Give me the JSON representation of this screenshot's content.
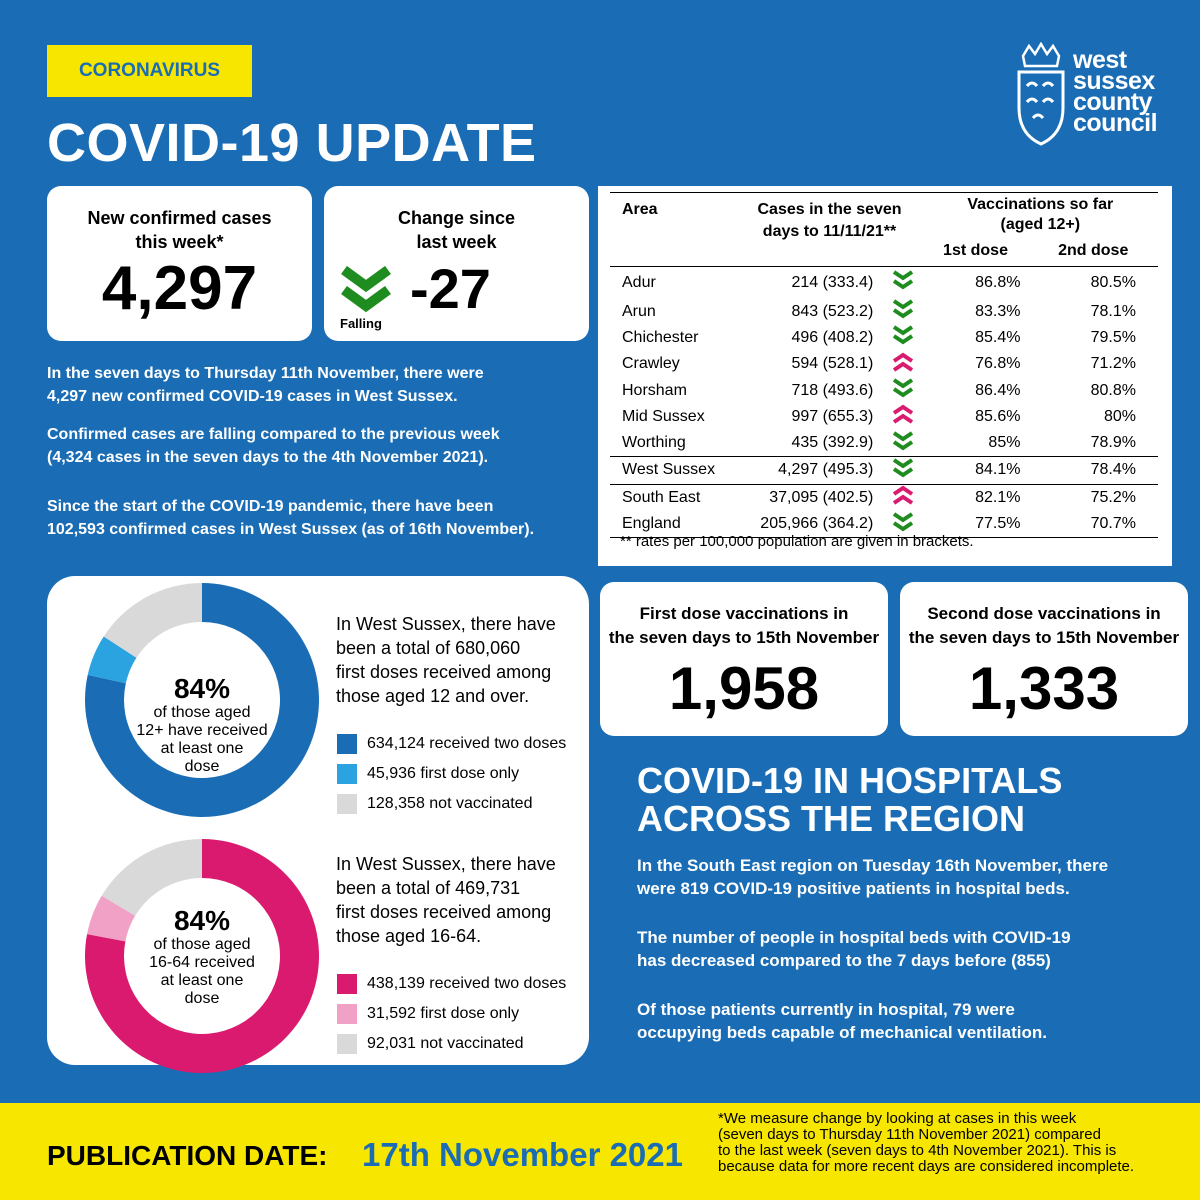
{
  "tag": "CORONAVIRUS",
  "title": "COVID-19 UPDATE",
  "logo": {
    "line1": "west",
    "line2": "sussex",
    "line3": "county",
    "line4": "council"
  },
  "cards": {
    "new_cases_label_1": "New confirmed cases",
    "new_cases_label_2": "this week*",
    "new_cases_value": "4,297",
    "change_label_1": "Change since",
    "change_label_2": "last week",
    "change_value": "-27",
    "change_status": "Falling"
  },
  "summary": {
    "p1_l1": "In the seven days to Thursday 11th November,  there were",
    "p1_l2": "4,297 new confirmed COVID-19 cases in West Sussex.",
    "p2_l1": "Confirmed cases are falling compared to the previous week",
    "p2_l2": "(4,324 cases in the seven days to the 4th November 2021).",
    "p3_l1": "Since the start of the COVID-19 pandemic, there have been",
    "p3_l2": "102,593 confirmed cases in West Sussex (as of 16th November)."
  },
  "table": {
    "h_area": "Area",
    "h_cases_1": "Cases in the seven",
    "h_cases_2": "days to 11/11/21**",
    "h_vacc_1": "Vaccinations so far",
    "h_vacc_2": "(aged 12+)",
    "h_d1": "1st dose",
    "h_d2": "2nd dose",
    "rows": [
      {
        "area": "Adur",
        "cases": "214 (333.4)",
        "trend": "down",
        "d1": "86.8%",
        "d2": "80.5%"
      },
      {
        "area": "Arun",
        "cases": "843 (523.2)",
        "trend": "down",
        "d1": "83.3%",
        "d2": "78.1%"
      },
      {
        "area": "Chichester",
        "cases": "496 (408.2)",
        "trend": "down",
        "d1": "85.4%",
        "d2": "79.5%"
      },
      {
        "area": "Crawley",
        "cases": "594 (528.1)",
        "trend": "up",
        "d1": "76.8%",
        "d2": "71.2%"
      },
      {
        "area": "Horsham",
        "cases": "718 (493.6)",
        "trend": "down",
        "d1": "86.4%",
        "d2": "80.8%"
      },
      {
        "area": "Mid Sussex",
        "cases": "997 (655.3)",
        "trend": "up",
        "d1": "85.6%",
        "d2": "80%"
      },
      {
        "area": "Worthing",
        "cases": "435 (392.9)",
        "trend": "down",
        "d1": "85%",
        "d2": "78.9%"
      },
      {
        "area": "West Sussex",
        "cases": "4,297 (495.3)",
        "trend": "down",
        "d1": "84.1%",
        "d2": "78.4%"
      },
      {
        "area": "South East",
        "cases": "37,095 (402.5)",
        "trend": "up",
        "d1": "82.1%",
        "d2": "75.2%"
      },
      {
        "area": "England",
        "cases": "205,966 (364.2)",
        "trend": "down",
        "d1": "77.5%",
        "d2": "70.7%"
      }
    ],
    "note": "** rates per 100,000 population are given in brackets."
  },
  "donut1": {
    "pct": "84%",
    "sub1": "of those aged",
    "sub2": "12+ have received",
    "sub3": "at least one",
    "sub4": "dose",
    "t1": "In West Sussex, there have",
    "t2": "been a total of 680,060",
    "t3": "first doses received among",
    "t4": "those aged 12 and over.",
    "legend": [
      {
        "label": "634,124 received two doses",
        "value": 634124,
        "color": "#1a6db5"
      },
      {
        "label": "45,936 first dose only",
        "value": 45936,
        "color": "#2aa3e0"
      },
      {
        "label": "128,358 not vaccinated",
        "value": 128358,
        "color": "#d9d9d9"
      }
    ]
  },
  "donut2": {
    "pct": "84%",
    "sub1": "of those aged",
    "sub2": "16-64 received",
    "sub3": "at least one",
    "sub4": "dose",
    "t1": "In West Sussex, there have",
    "t2": "been a total of 469,731",
    "t3": "first doses received among",
    "t4": "those aged 16-64.",
    "legend": [
      {
        "label": "438,139 received two doses",
        "value": 438139,
        "color": "#d91a6e"
      },
      {
        "label": "31,592 first dose only",
        "value": 31592,
        "color": "#f2a1c6"
      },
      {
        "label": "92,031 not vaccinated",
        "value": 92031,
        "color": "#d9d9d9"
      }
    ]
  },
  "vacc_cards": {
    "first_label_1": "First dose vaccinations in",
    "first_label_2": "the seven days to 15th November",
    "first_value": "1,958",
    "second_label_1": "Second dose vaccinations in",
    "second_label_2": "the seven days to 15th November",
    "second_value": "1,333"
  },
  "hospitals": {
    "title_1": "COVID-19 IN HOSPITALS",
    "title_2": "ACROSS THE REGION",
    "p1_l1": "In the South East region on Tuesday 16th November, there",
    "p1_l2": "were 819 COVID-19 positive patients in hospital beds.",
    "p2_l1": "The number of people in hospital beds with COVID-19",
    "p2_l2": "has decreased compared to the 7 days before (855)",
    "p3_l1": "Of those patients currently in hospital, 79 were",
    "p3_l2": "occupying beds capable of mechanical ventilation."
  },
  "footer": {
    "label": "PUBLICATION DATE:",
    "date": "17th November 2021",
    "note_1": "*We measure change by looking at cases in this week",
    "note_2": "(seven days to Thursday 11th November 2021) compared",
    "note_3": "to the last week (seven days to 4th November 2021). This is",
    "note_4": "because data for more recent days are considered incomplete."
  },
  "colors": {
    "background": "#1a6db5",
    "yellow": "#f7e600",
    "down": "#1e8c1e",
    "up": "#d91a6e"
  }
}
